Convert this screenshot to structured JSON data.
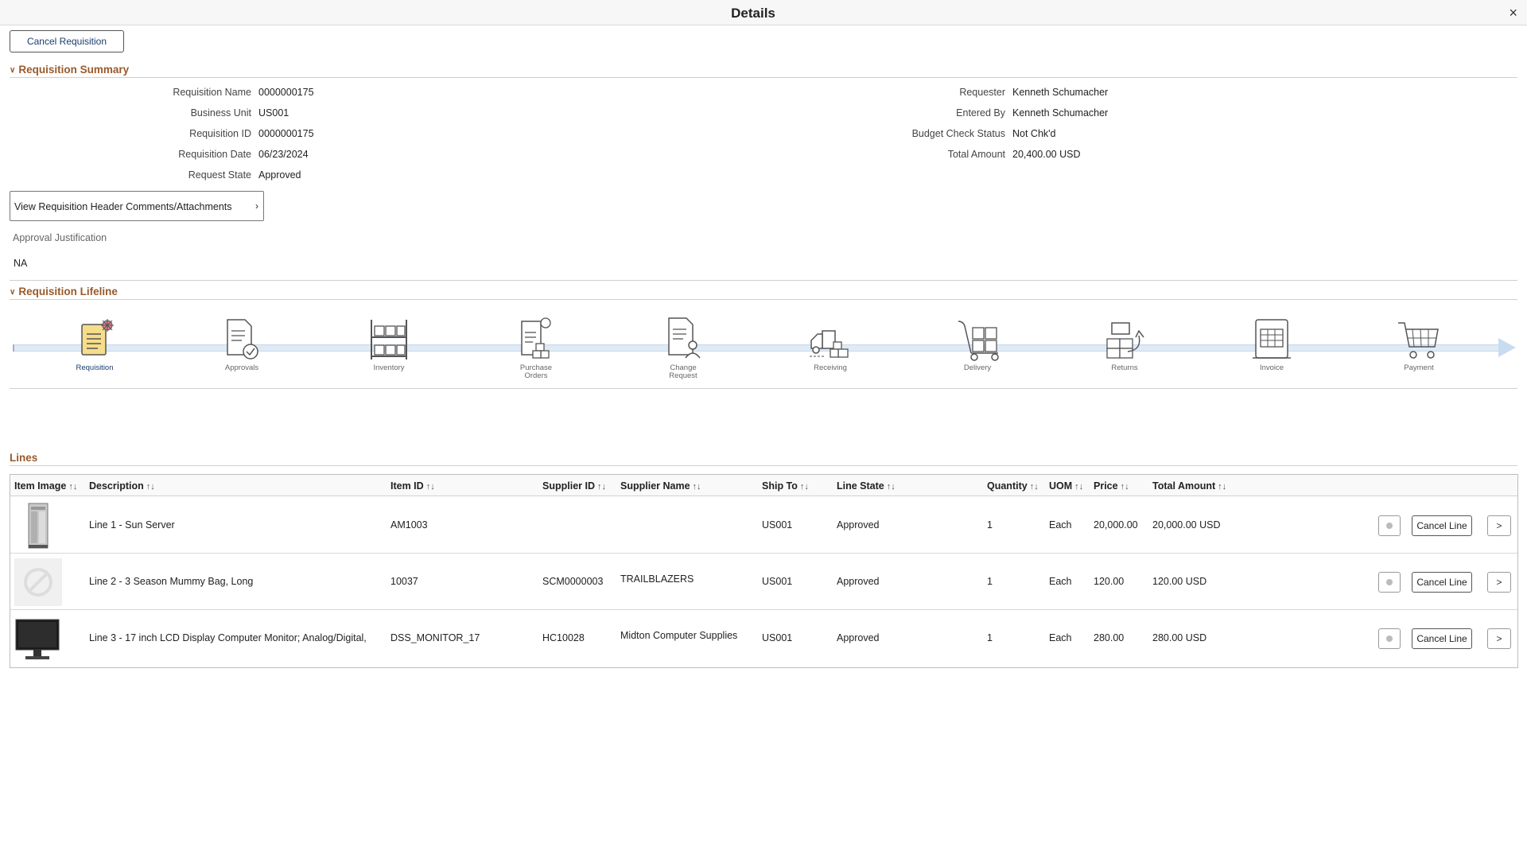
{
  "header": {
    "title": "Details",
    "close_glyph": "×"
  },
  "actions": {
    "cancel_requisition": "Cancel Requisition"
  },
  "summary": {
    "title": "Requisition Summary",
    "left": [
      {
        "label": "Requisition Name",
        "value": "0000000175"
      },
      {
        "label": "Business Unit",
        "value": "US001"
      },
      {
        "label": "Requisition ID",
        "value": "0000000175"
      },
      {
        "label": "Requisition Date",
        "value": "06/23/2024"
      },
      {
        "label": "Request State",
        "value": "Approved"
      }
    ],
    "right": [
      {
        "label": "Requester",
        "value": "Kenneth Schumacher"
      },
      {
        "label": "Entered By",
        "value": "Kenneth Schumacher"
      },
      {
        "label": "Budget Check Status",
        "value": "Not Chk'd"
      },
      {
        "label": "Total Amount",
        "value": "20,400.00 USD"
      }
    ],
    "header_link": "View Requisition Header Comments/Attachments",
    "approval_justification_label": "Approval Justification",
    "approval_justification_value": "NA"
  },
  "lifeline": {
    "title": "Requisition Lifeline",
    "stages": [
      {
        "label": "Requisition",
        "icon": "requisition-icon",
        "active": true
      },
      {
        "label": "Approvals",
        "icon": "approvals-icon",
        "active": false
      },
      {
        "label": "Inventory",
        "icon": "inventory-icon",
        "active": false
      },
      {
        "label": "Purchase Orders",
        "icon": "purchase-orders-icon",
        "active": false
      },
      {
        "label": "Change Request",
        "icon": "change-request-icon",
        "active": false
      },
      {
        "label": "Receiving",
        "icon": "receiving-icon",
        "active": false
      },
      {
        "label": "Delivery",
        "icon": "delivery-icon",
        "active": false
      },
      {
        "label": "Returns",
        "icon": "returns-icon",
        "active": false
      },
      {
        "label": "Invoice",
        "icon": "invoice-icon",
        "active": false
      },
      {
        "label": "Payment",
        "icon": "payment-icon",
        "active": false
      }
    ],
    "active_color": "#f5dd8a",
    "accent_color": "#e07a8c"
  },
  "lines": {
    "title": "Lines",
    "columns": [
      "Item Image",
      "Description",
      "Item ID",
      "Supplier ID",
      "Supplier Name",
      "Ship To",
      "Line State",
      "Quantity",
      "UOM",
      "Price",
      "Total Amount"
    ],
    "sort_glyph": "↑↓",
    "rows": [
      {
        "image": "server-image",
        "description": "Line 1 - Sun Server",
        "item_id": "AM1003",
        "supplier_id": "",
        "supplier_name": "",
        "ship_to": "US001",
        "line_state": "Approved",
        "quantity": "1",
        "uom": "Each",
        "price": "20,000.00",
        "total": "20,000.00 USD"
      },
      {
        "image": "no-image-placeholder",
        "description": "Line 2 - 3 Season Mummy Bag, Long",
        "item_id": "10037",
        "supplier_id": "SCM0000003",
        "supplier_name": "TRAILBLAZERS",
        "ship_to": "US001",
        "line_state": "Approved",
        "quantity": "1",
        "uom": "Each",
        "price": "120.00",
        "total": "120.00 USD"
      },
      {
        "image": "monitor-image",
        "description": "Line 3 - 17 inch LCD Display Computer Monitor; Analog/Digital,",
        "item_id": "DSS_MONITOR_17",
        "supplier_id": "HC10028",
        "supplier_name": "Midton Computer Supplies",
        "ship_to": "US001",
        "line_state": "Approved",
        "quantity": "1",
        "uom": "Each",
        "price": "280.00",
        "total": "280.00 USD"
      }
    ],
    "cancel_line_label": "Cancel Line",
    "go_glyph": ">"
  }
}
